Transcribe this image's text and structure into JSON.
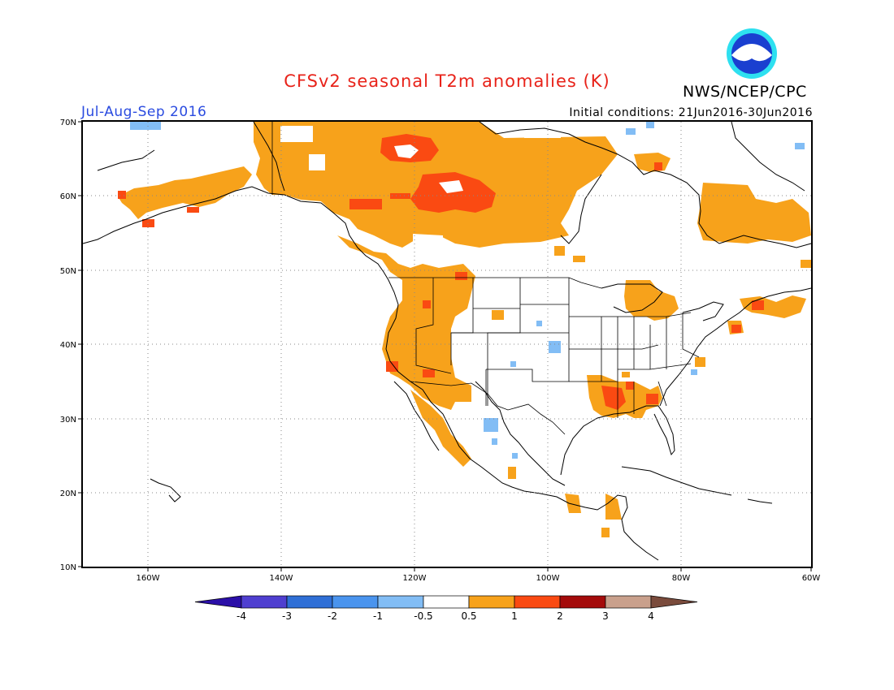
{
  "title": "CFSv2 seasonal T2m anomalies (K)",
  "agency": "NWS/NCEP/CPC",
  "logo_text": "NOAA",
  "season": "Jul-Aug-Sep 2016",
  "initial_conditions": "Initial conditions: 21Jun2016-30Jun2016",
  "lat_labels": [
    "70N",
    "60N",
    "50N",
    "40N",
    "30N",
    "20N",
    "10N"
  ],
  "lon_labels": [
    "160W",
    "140W",
    "120W",
    "100W",
    "80W",
    "60W"
  ],
  "colorbar": {
    "labels": [
      "-4",
      "-3",
      "-2",
      "-1",
      "-0.5",
      "0.5",
      "1",
      "2",
      "3",
      "4"
    ],
    "colors": [
      "#2b0fa8",
      "#4f3fd0",
      "#2f6fd6",
      "#4a94ee",
      "#82bdf5",
      "#ffffff",
      "#f7a21b",
      "#fa4a12",
      "#a40b0b",
      "#c9a08c",
      "#7a4b3c"
    ]
  },
  "colors": {
    "title": "#e8231a",
    "season": "#2a4be0",
    "warm": "#f7a21b",
    "hot": "#fa4a12",
    "cool": "#82bdf5"
  }
}
